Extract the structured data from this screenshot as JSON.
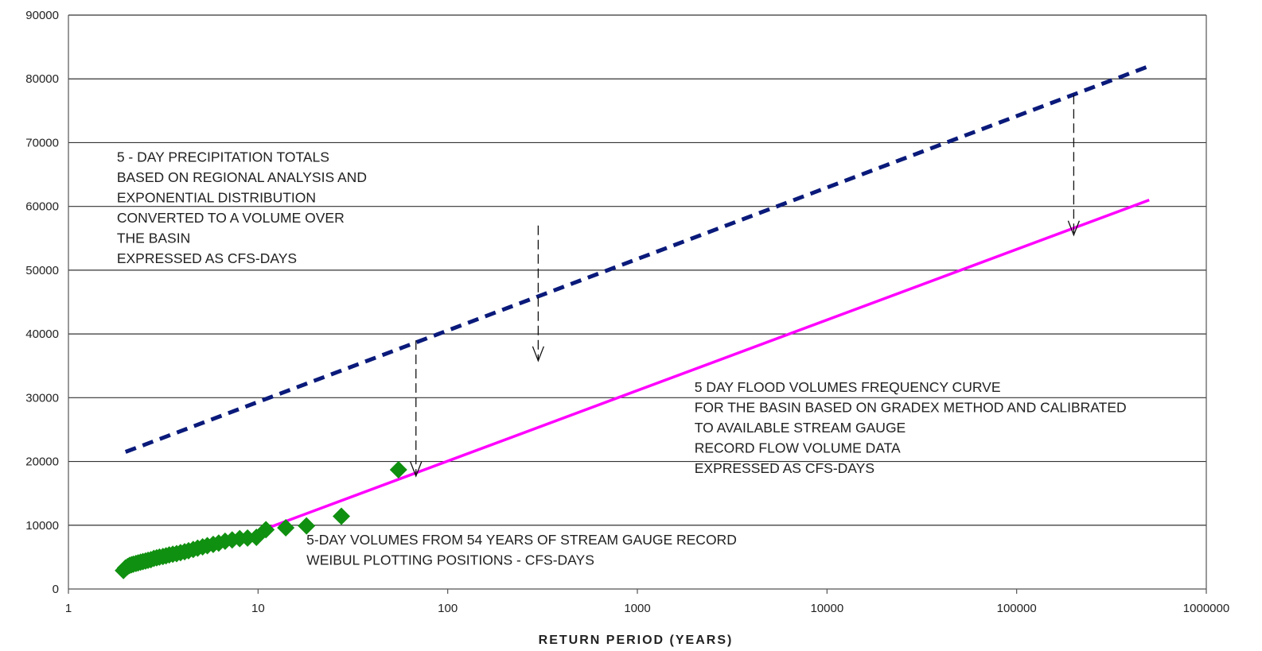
{
  "chart_data": {
    "type": "scatter",
    "title": "",
    "xlabel": "RETURN PERIOD (YEARS)",
    "ylabel": "",
    "x_scale": "log",
    "xlim": [
      1,
      1000000
    ],
    "ylim": [
      0,
      90000
    ],
    "grid": "horizontal",
    "x_ticks": [
      "1",
      "10",
      "100",
      "1000",
      "10000",
      "100000",
      "1000000"
    ],
    "y_ticks": [
      "0",
      "10000",
      "20000",
      "30000",
      "40000",
      "50000",
      "60000",
      "70000",
      "80000",
      "90000"
    ],
    "series": [
      {
        "style": "dashed-line",
        "color": "#0a1a7a",
        "points": [
          [
            2,
            21500
          ],
          [
            500000,
            82000
          ]
        ]
      },
      {
        "style": "line",
        "color": "#ff00ff",
        "points": [
          [
            10,
            9000
          ],
          [
            500000,
            61000
          ]
        ]
      },
      {
        "style": "markers",
        "marker": "diamond",
        "color": "#109010",
        "points": [
          [
            1.95,
            2900
          ],
          [
            2.0,
            3300
          ],
          [
            2.05,
            3500
          ],
          [
            2.1,
            3700
          ],
          [
            2.15,
            3800
          ],
          [
            2.2,
            3900
          ],
          [
            2.27,
            4000
          ],
          [
            2.33,
            4100
          ],
          [
            2.4,
            4200
          ],
          [
            2.47,
            4300
          ],
          [
            2.55,
            4400
          ],
          [
            2.63,
            4500
          ],
          [
            2.72,
            4600
          ],
          [
            2.82,
            4800
          ],
          [
            2.92,
            4900
          ],
          [
            3.02,
            5000
          ],
          [
            3.15,
            5100
          ],
          [
            3.27,
            5200
          ],
          [
            3.4,
            5350
          ],
          [
            3.55,
            5450
          ],
          [
            3.72,
            5550
          ],
          [
            3.9,
            5700
          ],
          [
            4.1,
            5850
          ],
          [
            4.3,
            6000
          ],
          [
            4.55,
            6200
          ],
          [
            4.8,
            6400
          ],
          [
            5.1,
            6600
          ],
          [
            5.4,
            6800
          ],
          [
            5.8,
            7000
          ],
          [
            6.2,
            7200
          ],
          [
            6.7,
            7500
          ],
          [
            7.3,
            7700
          ],
          [
            8.0,
            7900
          ],
          [
            8.8,
            8000
          ],
          [
            9.8,
            8100
          ],
          [
            11.0,
            9300
          ],
          [
            14.0,
            9600
          ],
          [
            18.0,
            9900
          ],
          [
            27.5,
            11400
          ],
          [
            55.0,
            18700
          ]
        ]
      }
    ],
    "arrows": [
      {
        "x": 68,
        "from": 39000,
        "to": 17700
      },
      {
        "x": 300,
        "from": 57000,
        "to": 35800
      },
      {
        "x": 200000,
        "from": 77500,
        "to": 55500
      }
    ],
    "annotations": [
      {
        "x": 1.8,
        "y": 67000,
        "lines": [
          "5 - DAY PRECIPITATION TOTALS",
          "BASED ON REGIONAL ANALYSIS AND",
          "EXPONENTIAL DISTRIBUTION",
          "CONVERTED TO A VOLUME OVER",
          "THE BASIN",
          "EXPRESSED AS  CFS-DAYS"
        ]
      },
      {
        "x": 2000,
        "y": 30900,
        "lines": [
          "5 DAY FLOOD VOLUMES FREQUENCY CURVE",
          "FOR THE BASIN BASED ON GRADEX METHOD AND CALIBRATED",
          "TO AVAILABLE  STREAM GAUGE",
          "RECORD FLOW VOLUME DATA",
          "EXPRESSED AS CFS-DAYS"
        ]
      },
      {
        "x": 18,
        "y": 7000,
        "lines": [
          "5-DAY VOLUMES FROM 54 YEARS OF STREAM GAUGE RECORD",
          " WEIBUL PLOTTING POSITIONS -  CFS-DAYS"
        ]
      }
    ]
  }
}
